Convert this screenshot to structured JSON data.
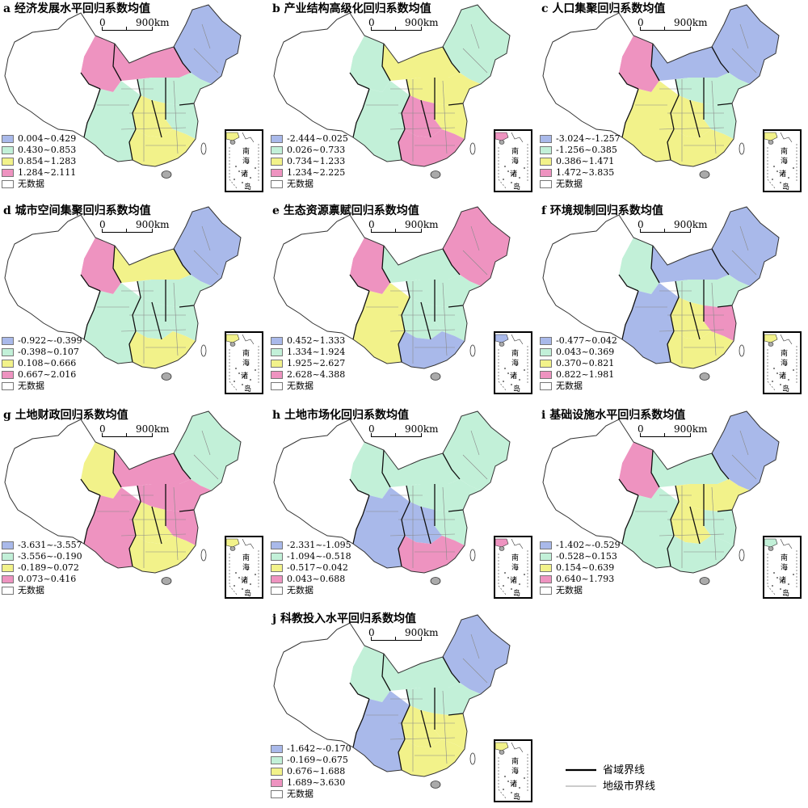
{
  "scale": {
    "zero": "0",
    "distance": "900km"
  },
  "colors": {
    "blue": "#a9b9ea",
    "green": "#c2f0d8",
    "yellow": "#f2f28a",
    "pink": "#ee93c0",
    "white": "#ffffff"
  },
  "no_data": "无数据",
  "inset": {
    "chars": [
      "南",
      "海",
      "诸",
      "岛"
    ]
  },
  "boundary_legend": {
    "province": "省域界线",
    "city": "地级市界线"
  },
  "panels": [
    {
      "title": "a 经济发展水平回归系数均值",
      "classes": [
        "0.004~0.429",
        "0.430~0.853",
        "0.854~1.283",
        "1.284~2.111"
      ]
    },
    {
      "title": "b 产业结构高级化回归系数均值",
      "classes": [
        "-2.444~0.025",
        "0.026~0.733",
        "0.734~1.233",
        "1.234~2.225"
      ]
    },
    {
      "title": "c 人口集聚回归系数均值",
      "classes": [
        "-3.024~-1.257",
        "-1.256~0.385",
        "0.386~1.471",
        "1.472~3.835"
      ]
    },
    {
      "title": "d 城市空间集聚回归系数均值",
      "classes": [
        "-0.922~-0.399",
        "-0.398~0.107",
        "0.108~0.666",
        "0.667~2.016"
      ]
    },
    {
      "title": "e 生态资源禀赋回归系数均值",
      "classes": [
        "0.452~1.333",
        "1.334~1.924",
        "1.925~2.627",
        "2.628~4.388"
      ]
    },
    {
      "title": "f 环境规制回归系数均值",
      "classes": [
        "-0.477~0.042",
        "0.043~0.369",
        "0.370~0.821",
        "0.822~1.981"
      ]
    },
    {
      "title": "g 土地财政回归系数均值",
      "classes": [
        "-3.631~-3.557",
        "-3.556~-0.190",
        "-0.189~0.072",
        "0.073~0.416"
      ]
    },
    {
      "title": "h 土地市场化回归系数均值",
      "classes": [
        "-2.331~-1.095",
        "-1.094~-0.518",
        "-0.517~0.042",
        "0.043~0.688"
      ]
    },
    {
      "title": "i 基础设施水平回归系数均值",
      "classes": [
        "-1.402~-0.529",
        "-0.528~0.153",
        "0.154~0.639",
        "0.640~1.793"
      ]
    },
    {
      "title": "j 科教投入水平回归系数均值",
      "classes": [
        "-1.642~-0.170",
        "-0.169~0.675",
        "0.676~1.688",
        "1.689~3.630"
      ]
    }
  ]
}
